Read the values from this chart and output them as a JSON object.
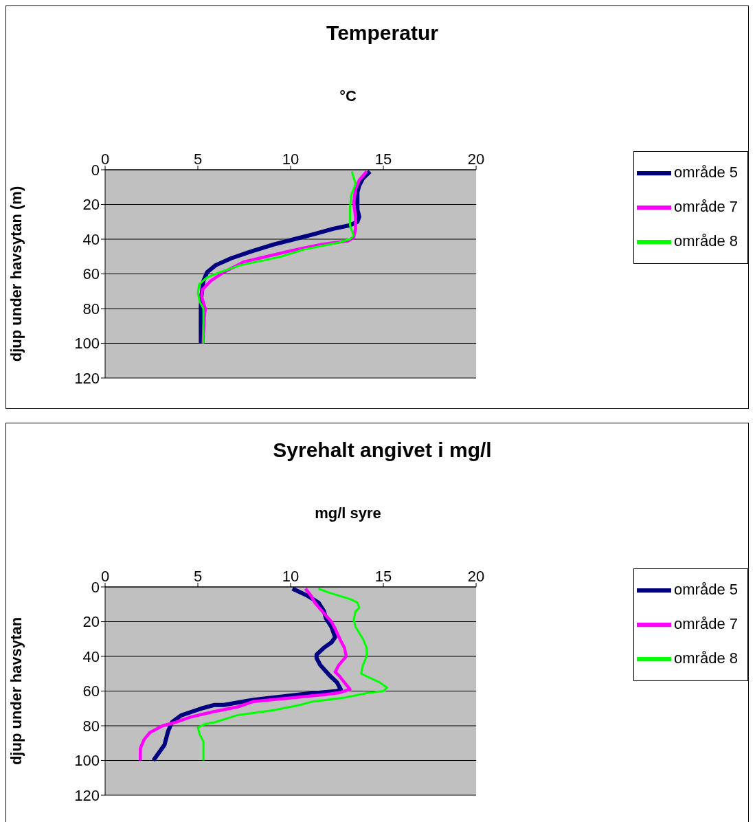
{
  "chart_data": [
    {
      "type": "line",
      "title": "Temperatur",
      "xlabel": "°C",
      "ylabel": "djup under havsytan (m)",
      "xlim": [
        0,
        20
      ],
      "xticks": [
        0,
        5,
        10,
        15,
        20
      ],
      "ylim": [
        120,
        0
      ],
      "yticks": [
        0,
        20,
        40,
        60,
        80,
        100,
        120
      ],
      "grid": "y",
      "legend": "right",
      "marker": "none",
      "line_style": "solid",
      "series": [
        {
          "name": "område 5",
          "color": "#000080",
          "x": [
            14.28,
            13.9,
            13.7,
            13.6,
            13.6,
            13.7,
            13.6,
            13.2,
            12.3,
            11.3,
            10.2,
            9.1,
            7.9,
            6.8,
            5.96,
            5.5,
            5.3,
            5.19,
            5.16,
            5.16
          ],
          "values": [
            1,
            5,
            9,
            13,
            23,
            27,
            30,
            32,
            34,
            37,
            40,
            43,
            47,
            51,
            55,
            59,
            64,
            73,
            79,
            100
          ]
        },
        {
          "name": "område 7",
          "color": "#ff00ff",
          "x": [
            14.1,
            13.7,
            13.5,
            13.4,
            13.5,
            13.5,
            13.4,
            13.1,
            11.7,
            10.3,
            8.7,
            7.5,
            6.4,
            5.7,
            5.25,
            5.2,
            5.4,
            5.35,
            5.28
          ],
          "values": [
            1,
            6,
            11,
            19,
            27,
            34,
            39,
            41,
            43,
            46,
            50,
            53,
            59,
            64,
            69,
            73,
            80,
            85,
            100
          ]
        },
        {
          "name": "område 8",
          "color": "#00ff00",
          "x": [
            13.3,
            13.5,
            13.26,
            13.2,
            13.2,
            13.4,
            13.2,
            12.6,
            10.7,
            9.5,
            7.3,
            6.2,
            5.5,
            5.07,
            5.0,
            5.1,
            5.3,
            5.3
          ],
          "values": [
            1,
            8,
            15,
            22,
            32,
            38,
            40,
            42,
            46,
            50,
            55,
            59,
            62,
            66,
            71,
            76,
            80,
            100
          ]
        }
      ]
    },
    {
      "type": "line",
      "title": "Syrehalt angivet i mg/l",
      "xlabel": "mg/l syre",
      "ylabel": "djup under havsytan",
      "xlim": [
        0,
        20
      ],
      "xticks": [
        0,
        5,
        10,
        15,
        20
      ],
      "ylim": [
        120,
        0
      ],
      "yticks": [
        0,
        20,
        40,
        60,
        80,
        100,
        120
      ],
      "grid": "y",
      "legend": "right",
      "marker": "none",
      "line_style": "solid",
      "series": [
        {
          "name": "område 5",
          "color": "#000080",
          "x": [
            10.1,
            10.5,
            10.9,
            11.5,
            11.8,
            11.9,
            12.2,
            12.4,
            12.2,
            11.8,
            11.4,
            11.4,
            11.6,
            12.1,
            12.5,
            12.7,
            12.5,
            10.5,
            8.0,
            6.4,
            5.9,
            5.2,
            4.1,
            3.6,
            3.4,
            3.2,
            2.6
          ],
          "values": [
            1,
            3,
            5,
            9,
            14,
            18,
            23,
            29,
            32,
            35,
            39,
            41,
            45,
            51,
            55,
            59,
            60,
            62,
            65,
            68,
            68,
            70,
            74,
            78,
            83,
            91,
            100
          ]
        },
        {
          "name": "område 7",
          "color": "#ff00ff",
          "x": [
            10.8,
            11.1,
            11.3,
            11.7,
            12.2,
            12.4,
            12.7,
            12.9,
            13.0,
            12.6,
            12.4,
            12.6,
            12.9,
            13.2,
            12.6,
            11.9,
            10.0,
            8.0,
            7.2,
            5.8,
            4.6,
            3.8,
            3.1,
            2.4,
            2.1,
            1.9,
            1.9
          ],
          "values": [
            1,
            5,
            9,
            14,
            20,
            24,
            31,
            35,
            40,
            45,
            49,
            51,
            55,
            59,
            61,
            62,
            64,
            66,
            69,
            72,
            75,
            78,
            80,
            84,
            88,
            93,
            100
          ]
        },
        {
          "name": "område 8",
          "color": "#00ff00",
          "x": [
            11.5,
            12.0,
            12.6,
            13.2,
            13.6,
            13.7,
            13.5,
            13.4,
            13.5,
            13.9,
            14.1,
            14.1,
            13.9,
            13.8,
            14.4,
            14.8,
            15.2,
            15.0,
            14.2,
            12.8,
            11.2,
            10.5,
            9.1,
            7.1,
            5.9,
            5.4,
            5.0,
            5.1,
            5.3,
            5.3
          ],
          "values": [
            1,
            3,
            5,
            7,
            9,
            12,
            14,
            19,
            23,
            30,
            35,
            40,
            45,
            50,
            53,
            55,
            58,
            60,
            61,
            64,
            66,
            68,
            71,
            74,
            78,
            79,
            81,
            85,
            89,
            100
          ]
        }
      ]
    }
  ]
}
